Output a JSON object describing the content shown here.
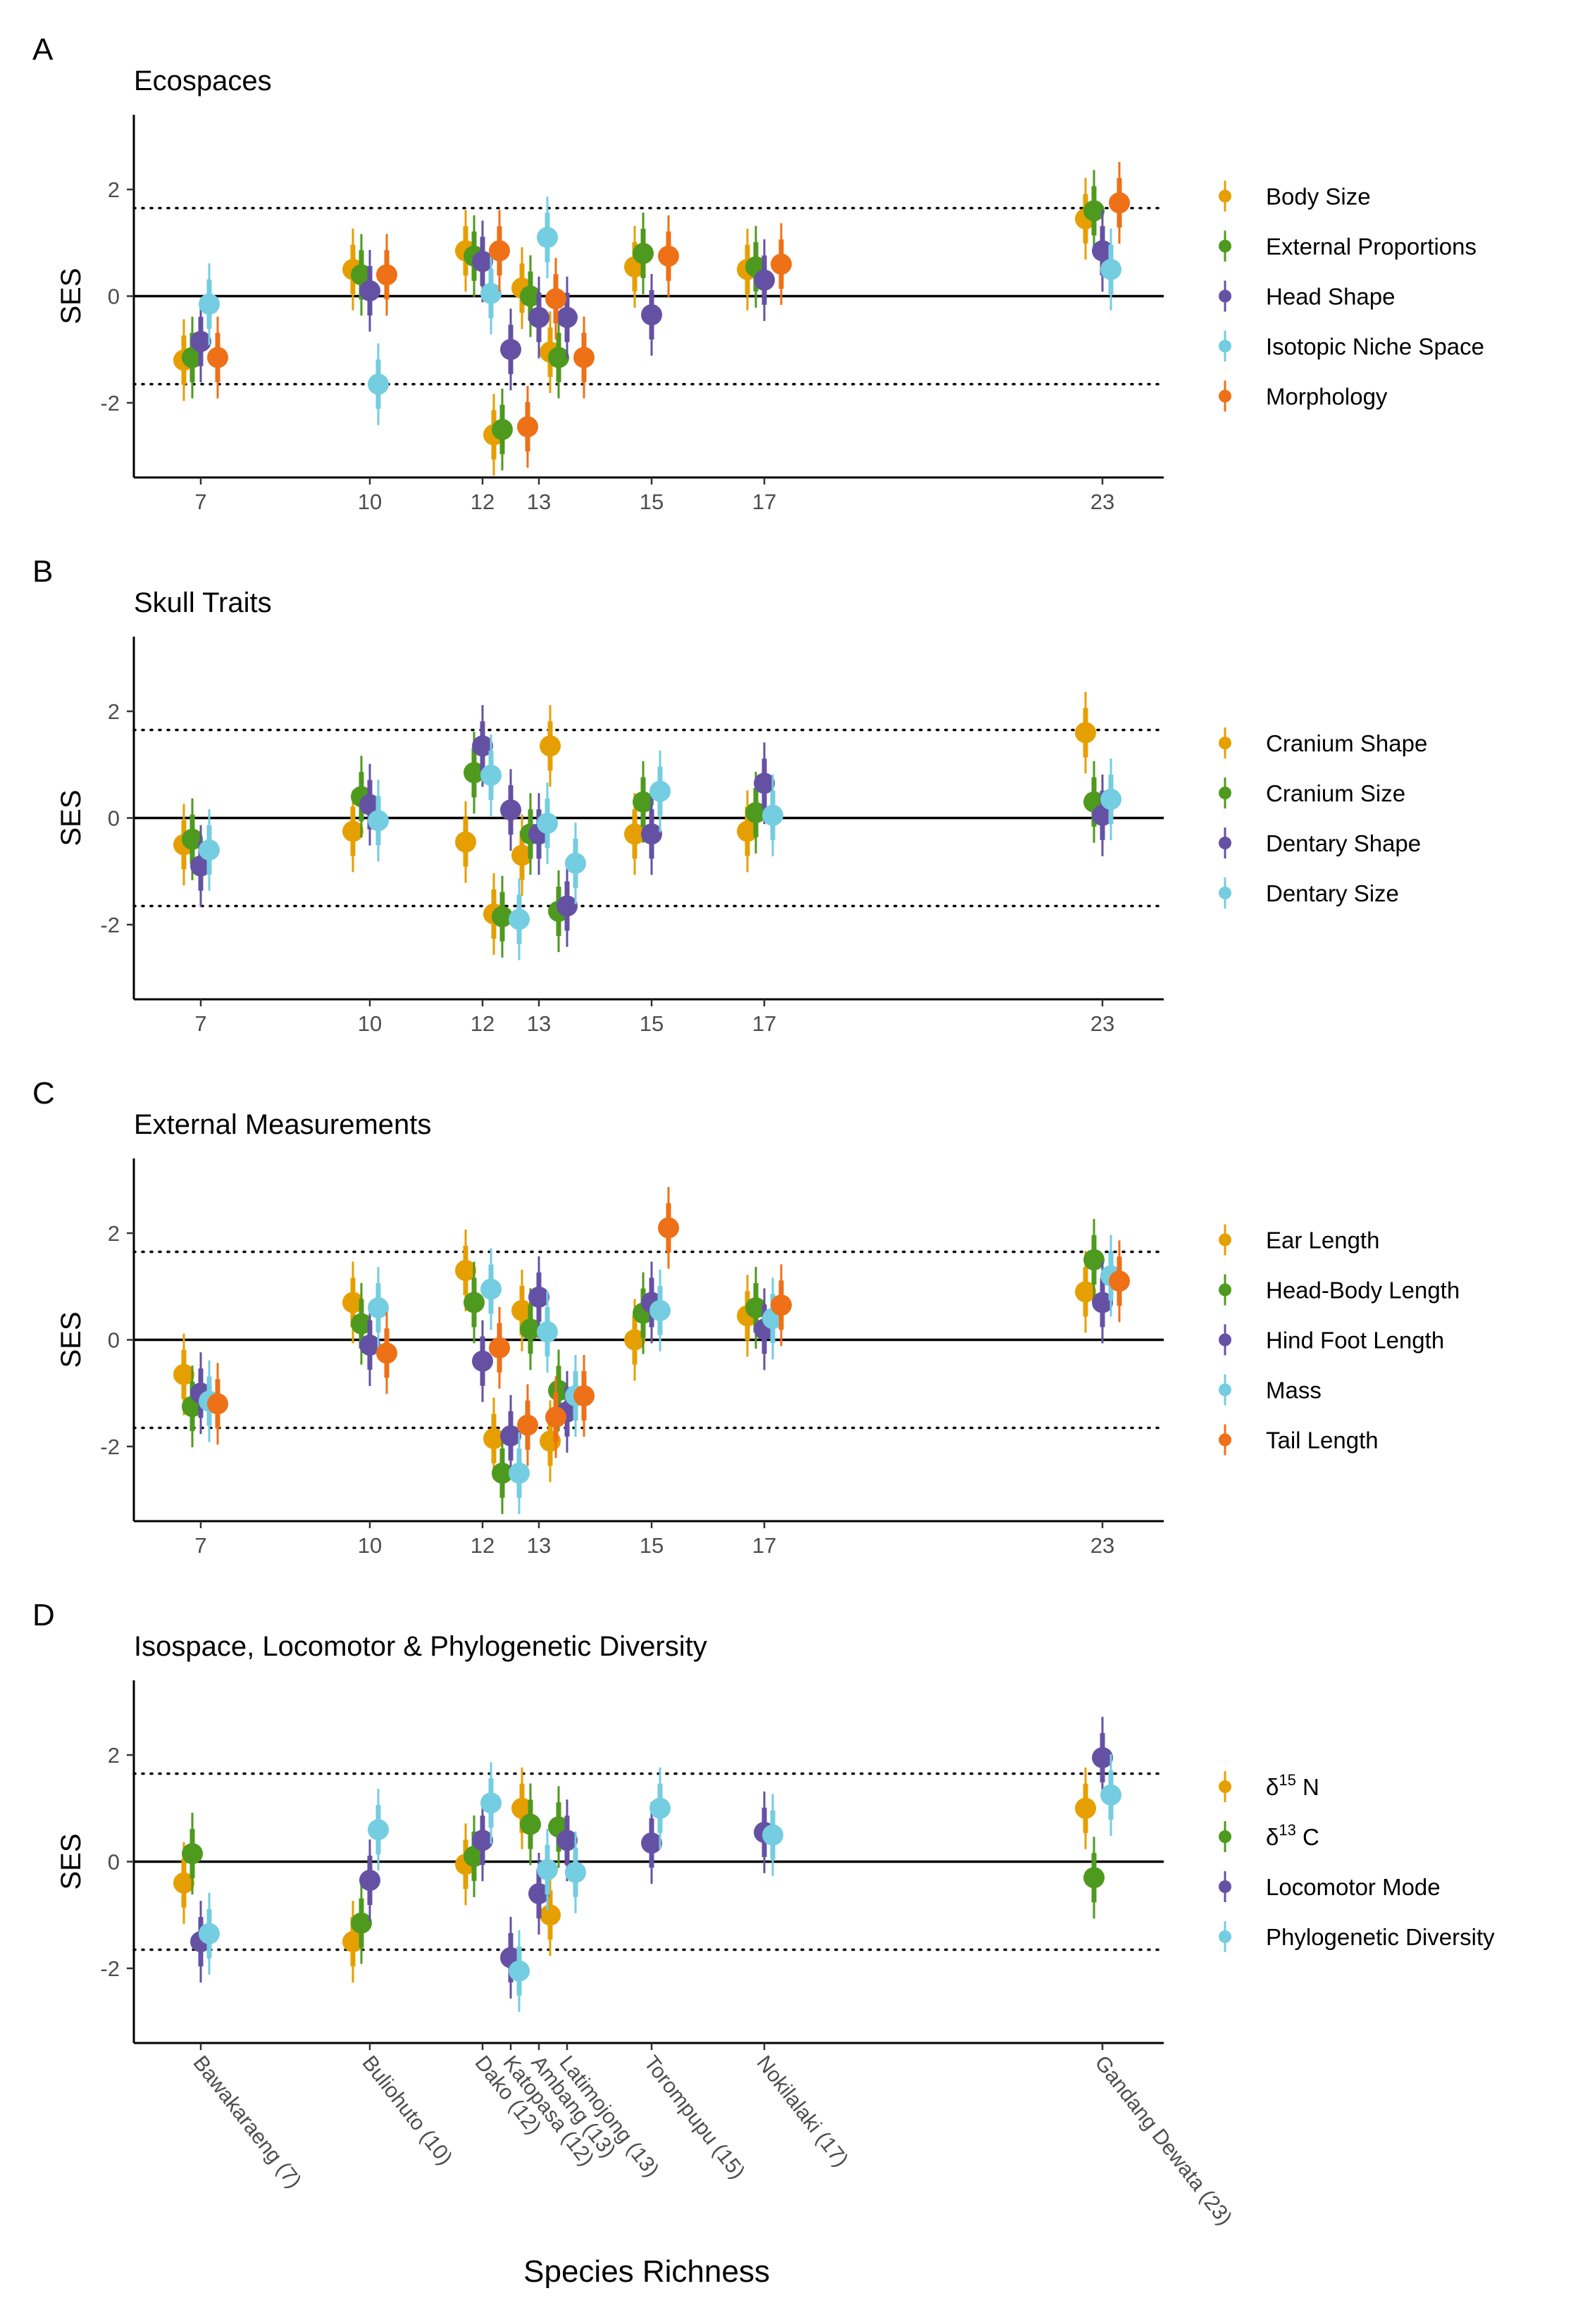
{
  "figure": {
    "x_axis_title": "Species Richness",
    "sites": [
      "Bawakaraeng (7)",
      "Buliohuto (10)",
      "Dako (12)",
      "Katopasa (12)",
      "Ambang (13)",
      "Latimojong (13)",
      "Torompupu (15)",
      "Nokilalaki (17)",
      "Gandang Dewata (23)"
    ]
  },
  "colors": {
    "orange": "#E69F00",
    "green": "#4D9A1E",
    "purple": "#6551A3",
    "cyan": "#74CDE0",
    "red": "#EE7017"
  },
  "chart_data": [
    {
      "panel": "A",
      "title": "Ecospaces",
      "type": "scatter",
      "ylabel": "SES",
      "xlabel": "",
      "x_ticks": [
        7,
        10,
        12,
        13,
        15,
        17,
        23
      ],
      "ylim": [
        -3.4,
        3.4
      ],
      "y_ticks": [
        -2,
        0,
        2
      ],
      "reference_lines": {
        "solid": 0,
        "dotted": [
          -1.65,
          1.65
        ]
      },
      "grid": false,
      "legend_position": "right",
      "series": [
        {
          "name": "Body Size",
          "color": "orange",
          "offset": -0.3,
          "points": [
            {
              "x": 7,
              "y": -1.2
            },
            {
              "x": 10,
              "y": 0.5
            },
            {
              "x": 12,
              "y": 0.85
            },
            {
              "x": 12,
              "y": -2.6
            },
            {
              "x": 13,
              "y": 0.15
            },
            {
              "x": 13,
              "y": -1.05
            },
            {
              "x": 15,
              "y": 0.55
            },
            {
              "x": 17,
              "y": 0.5
            },
            {
              "x": 23,
              "y": 1.45
            }
          ]
        },
        {
          "name": "External Proportions",
          "color": "green",
          "offset": -0.15,
          "points": [
            {
              "x": 7,
              "y": -1.15
            },
            {
              "x": 10,
              "y": 0.4
            },
            {
              "x": 12,
              "y": 0.75
            },
            {
              "x": 12,
              "y": -2.5
            },
            {
              "x": 13,
              "y": 0.0
            },
            {
              "x": 13,
              "y": -1.15
            },
            {
              "x": 15,
              "y": 0.8
            },
            {
              "x": 17,
              "y": 0.55
            },
            {
              "x": 23,
              "y": 1.6
            }
          ]
        },
        {
          "name": "Head Shape",
          "color": "purple",
          "offset": 0.0,
          "points": [
            {
              "x": 7,
              "y": -0.85
            },
            {
              "x": 10,
              "y": 0.1
            },
            {
              "x": 12,
              "y": 0.65
            },
            {
              "x": 12,
              "y": -1.0
            },
            {
              "x": 13,
              "y": -0.4
            },
            {
              "x": 13,
              "y": -0.4
            },
            {
              "x": 15,
              "y": -0.35
            },
            {
              "x": 17,
              "y": 0.3
            },
            {
              "x": 23,
              "y": 0.85
            }
          ]
        },
        {
          "name": "Isotopic Niche Space",
          "color": "cyan",
          "offset": 0.15,
          "points": [
            {
              "x": 7,
              "y": -0.15
            },
            {
              "x": 10,
              "y": -1.65
            },
            {
              "x": 12,
              "y": 0.05
            },
            {
              "x": 13,
              "y": 1.1
            },
            {
              "x": 23,
              "y": 0.5
            }
          ]
        },
        {
          "name": "Morphology",
          "color": "red",
          "offset": 0.3,
          "points": [
            {
              "x": 7,
              "y": -1.15
            },
            {
              "x": 10,
              "y": 0.4
            },
            {
              "x": 12,
              "y": 0.85
            },
            {
              "x": 12,
              "y": -2.45
            },
            {
              "x": 13,
              "y": -0.05
            },
            {
              "x": 13,
              "y": -1.15
            },
            {
              "x": 15,
              "y": 0.75
            },
            {
              "x": 17,
              "y": 0.6
            },
            {
              "x": 23,
              "y": 1.75
            }
          ]
        }
      ]
    },
    {
      "panel": "B",
      "title": "Skull Traits",
      "type": "scatter",
      "ylabel": "SES",
      "xlabel": "",
      "x_ticks": [
        7,
        10,
        12,
        13,
        15,
        17,
        23
      ],
      "ylim": [
        -3.4,
        3.4
      ],
      "y_ticks": [
        -2,
        0,
        2
      ],
      "reference_lines": {
        "solid": 0,
        "dotted": [
          -1.65,
          1.65
        ]
      },
      "grid": false,
      "legend_position": "right",
      "series": [
        {
          "name": "Cranium Shape",
          "color": "orange",
          "offset": -0.3,
          "points": [
            {
              "x": 7,
              "y": -0.5
            },
            {
              "x": 10,
              "y": -0.25
            },
            {
              "x": 12,
              "y": -0.45
            },
            {
              "x": 12,
              "y": -1.8
            },
            {
              "x": 13,
              "y": -0.7
            },
            {
              "x": 13,
              "y": 1.35
            },
            {
              "x": 15,
              "y": -0.3
            },
            {
              "x": 17,
              "y": -0.25
            },
            {
              "x": 23,
              "y": 1.6
            }
          ]
        },
        {
          "name": "Cranium Size",
          "color": "green",
          "offset": -0.15,
          "points": [
            {
              "x": 7,
              "y": -0.4
            },
            {
              "x": 10,
              "y": 0.4
            },
            {
              "x": 12,
              "y": 0.85
            },
            {
              "x": 12,
              "y": -1.85
            },
            {
              "x": 13,
              "y": -0.3
            },
            {
              "x": 13,
              "y": -1.75
            },
            {
              "x": 15,
              "y": 0.3
            },
            {
              "x": 17,
              "y": 0.1
            },
            {
              "x": 23,
              "y": 0.3
            }
          ]
        },
        {
          "name": "Dentary Shape",
          "color": "purple",
          "offset": 0.0,
          "points": [
            {
              "x": 7,
              "y": -0.9
            },
            {
              "x": 10,
              "y": 0.25
            },
            {
              "x": 12,
              "y": 1.35
            },
            {
              "x": 12,
              "y": 0.15
            },
            {
              "x": 13,
              "y": -0.3
            },
            {
              "x": 13,
              "y": -1.65
            },
            {
              "x": 15,
              "y": -0.3
            },
            {
              "x": 17,
              "y": 0.65
            },
            {
              "x": 23,
              "y": 0.05
            }
          ]
        },
        {
          "name": "Dentary Size",
          "color": "cyan",
          "offset": 0.15,
          "points": [
            {
              "x": 7,
              "y": -0.6
            },
            {
              "x": 10,
              "y": -0.05
            },
            {
              "x": 12,
              "y": 0.8
            },
            {
              "x": 12,
              "y": -1.9
            },
            {
              "x": 13,
              "y": -0.1
            },
            {
              "x": 13,
              "y": -0.85
            },
            {
              "x": 15,
              "y": 0.5
            },
            {
              "x": 17,
              "y": 0.05
            },
            {
              "x": 23,
              "y": 0.35
            }
          ]
        }
      ]
    },
    {
      "panel": "C",
      "title": "External Measurements",
      "type": "scatter",
      "ylabel": "SES",
      "xlabel": "",
      "x_ticks": [
        7,
        10,
        12,
        13,
        15,
        17,
        23
      ],
      "ylim": [
        -3.4,
        3.4
      ],
      "y_ticks": [
        -2,
        0,
        2
      ],
      "reference_lines": {
        "solid": 0,
        "dotted": [
          -1.65,
          1.65
        ]
      },
      "grid": false,
      "legend_position": "right",
      "series": [
        {
          "name": "Ear Length",
          "color": "orange",
          "offset": -0.3,
          "points": [
            {
              "x": 7,
              "y": -0.65
            },
            {
              "x": 10,
              "y": 0.7
            },
            {
              "x": 12,
              "y": 1.3
            },
            {
              "x": 12,
              "y": -1.85
            },
            {
              "x": 13,
              "y": 0.55
            },
            {
              "x": 13,
              "y": -1.9
            },
            {
              "x": 15,
              "y": 0.0
            },
            {
              "x": 17,
              "y": 0.45
            },
            {
              "x": 23,
              "y": 0.9
            }
          ]
        },
        {
          "name": "Head-Body Length",
          "color": "green",
          "offset": -0.15,
          "points": [
            {
              "x": 7,
              "y": -1.25
            },
            {
              "x": 10,
              "y": 0.3
            },
            {
              "x": 12,
              "y": 0.7
            },
            {
              "x": 12,
              "y": -2.5
            },
            {
              "x": 13,
              "y": 0.2
            },
            {
              "x": 13,
              "y": -0.95
            },
            {
              "x": 15,
              "y": 0.5
            },
            {
              "x": 17,
              "y": 0.6
            },
            {
              "x": 23,
              "y": 1.5
            }
          ]
        },
        {
          "name": "Hind Foot Length",
          "color": "purple",
          "offset": 0.0,
          "points": [
            {
              "x": 7,
              "y": -1.0
            },
            {
              "x": 10,
              "y": -0.1
            },
            {
              "x": 12,
              "y": -0.4
            },
            {
              "x": 12,
              "y": -1.8
            },
            {
              "x": 13,
              "y": 0.8
            },
            {
              "x": 13,
              "y": -1.35
            },
            {
              "x": 15,
              "y": 0.7
            },
            {
              "x": 17,
              "y": 0.2
            },
            {
              "x": 23,
              "y": 0.7
            }
          ]
        },
        {
          "name": "Mass",
          "color": "cyan",
          "offset": 0.15,
          "points": [
            {
              "x": 7,
              "y": -1.15
            },
            {
              "x": 10,
              "y": 0.6
            },
            {
              "x": 12,
              "y": 0.95
            },
            {
              "x": 12,
              "y": -2.5
            },
            {
              "x": 13,
              "y": 0.15
            },
            {
              "x": 13,
              "y": -1.05
            },
            {
              "x": 15,
              "y": 0.55
            },
            {
              "x": 17,
              "y": 0.4
            },
            {
              "x": 23,
              "y": 1.2
            }
          ]
        },
        {
          "name": "Tail Length",
          "color": "red",
          "offset": 0.3,
          "points": [
            {
              "x": 7,
              "y": -1.2
            },
            {
              "x": 10,
              "y": -0.25
            },
            {
              "x": 12,
              "y": -0.15
            },
            {
              "x": 12,
              "y": -1.6
            },
            {
              "x": 13,
              "y": -1.45
            },
            {
              "x": 13,
              "y": -1.05
            },
            {
              "x": 15,
              "y": 2.1
            },
            {
              "x": 17,
              "y": 0.65
            },
            {
              "x": 23,
              "y": 1.1
            }
          ]
        }
      ]
    },
    {
      "panel": "D",
      "title": "Isospace, Locomotor & Phylogenetic Diversity",
      "type": "scatter",
      "ylabel": "SES",
      "xlabel": "Species Richness",
      "x_ticks_labels": [
        "Bawakaraeng (7)",
        "Buliohuto (10)",
        "Dako (12)",
        "Katopasa (12)",
        "Ambang (13)",
        "Latimojong (13)",
        "Torompupu (15)",
        "Nokilalaki (17)",
        "Gandang Dewata (23)"
      ],
      "ylim": [
        -3.4,
        3.4
      ],
      "y_ticks": [
        -2,
        0,
        2
      ],
      "reference_lines": {
        "solid": 0,
        "dotted": [
          -1.65,
          1.65
        ]
      },
      "grid": false,
      "legend_position": "right",
      "series": [
        {
          "name": "δ15 N",
          "label_main": "δ",
          "label_sup": "15",
          "label_tail": " N",
          "color": "orange",
          "offset": -0.3,
          "points": [
            {
              "x": 7,
              "y": -0.4
            },
            {
              "x": 10,
              "y": -1.5
            },
            {
              "x": 12,
              "y": -0.05
            },
            {
              "x": 13,
              "y": 1.0
            },
            {
              "x": 13,
              "y": -1.0
            },
            {
              "x": 23,
              "y": 1.0
            }
          ]
        },
        {
          "name": "δ13 C",
          "label_main": "δ",
          "label_sup": "13",
          "label_tail": " C",
          "color": "green",
          "offset": -0.15,
          "points": [
            {
              "x": 7,
              "y": 0.15
            },
            {
              "x": 10,
              "y": -1.15
            },
            {
              "x": 12,
              "y": 0.1
            },
            {
              "x": 13,
              "y": 0.7
            },
            {
              "x": 13,
              "y": 0.65
            },
            {
              "x": 23,
              "y": -0.3
            }
          ]
        },
        {
          "name": "Locomotor Mode",
          "color": "purple",
          "offset": 0.0,
          "points": [
            {
              "x": 7,
              "y": -1.5
            },
            {
              "x": 10,
              "y": -0.35
            },
            {
              "x": 12,
              "y": 0.4
            },
            {
              "x": 12,
              "y": -1.8
            },
            {
              "x": 13,
              "y": -0.6
            },
            {
              "x": 13,
              "y": 0.4
            },
            {
              "x": 15,
              "y": 0.35
            },
            {
              "x": 17,
              "y": 0.55
            },
            {
              "x": 23,
              "y": 1.95
            }
          ]
        },
        {
          "name": "Phylogenetic Diversity",
          "color": "cyan",
          "offset": 0.15,
          "points": [
            {
              "x": 7,
              "y": -1.35
            },
            {
              "x": 10,
              "y": 0.6
            },
            {
              "x": 12,
              "y": 1.1
            },
            {
              "x": 12,
              "y": -2.05
            },
            {
              "x": 13,
              "y": -0.15
            },
            {
              "x": 13,
              "y": -0.2
            },
            {
              "x": 15,
              "y": 1.0
            },
            {
              "x": 17,
              "y": 0.5
            },
            {
              "x": 23,
              "y": 1.25
            }
          ]
        }
      ]
    }
  ]
}
